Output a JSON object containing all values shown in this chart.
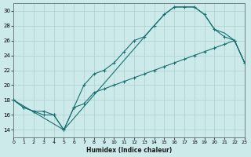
{
  "xlabel": "Humidex (Indice chaleur)",
  "bg_color": "#cceaea",
  "grid_color": "#aed0d0",
  "line_color": "#1a7070",
  "x_min": 0,
  "x_max": 23,
  "y_min": 13,
  "y_max": 31,
  "yticks": [
    14,
    16,
    18,
    20,
    22,
    24,
    26,
    28,
    30
  ],
  "xticks": [
    0,
    1,
    2,
    3,
    4,
    5,
    6,
    7,
    8,
    9,
    10,
    11,
    12,
    13,
    14,
    15,
    16,
    17,
    18,
    19,
    20,
    21,
    22,
    23
  ],
  "line1_x": [
    0,
    1,
    2,
    3,
    4,
    5,
    6,
    7,
    8,
    9,
    10,
    11,
    12,
    13,
    14,
    15,
    16,
    17,
    18,
    19,
    20,
    21,
    22,
    23
  ],
  "line1_y": [
    18,
    17,
    16.5,
    16.5,
    16,
    14,
    17,
    20,
    21.5,
    22,
    23,
    24.5,
    26,
    26.5,
    28,
    29.5,
    30.5,
    30.5,
    30.5,
    29.5,
    27.5,
    26.5,
    26,
    23
  ],
  "line2_x": [
    0,
    1,
    2,
    3,
    4,
    5,
    6,
    7,
    8,
    9,
    10,
    11,
    12,
    13,
    14,
    15,
    16,
    17,
    18,
    19,
    20,
    21,
    22,
    23
  ],
  "line2_y": [
    18,
    17,
    16.5,
    16,
    16,
    14,
    17,
    17.5,
    19.0,
    19.5,
    20,
    20.5,
    21,
    21.5,
    22,
    22.5,
    23,
    23.5,
    24,
    24.5,
    25,
    25.5,
    26,
    23
  ],
  "line3_x": [
    0,
    5,
    14,
    15,
    16,
    17,
    18,
    19,
    20,
    21,
    22,
    23
  ],
  "line3_y": [
    18,
    14,
    28,
    29.5,
    30.5,
    30.5,
    30.5,
    29.5,
    27.5,
    27.0,
    26.0,
    23
  ]
}
